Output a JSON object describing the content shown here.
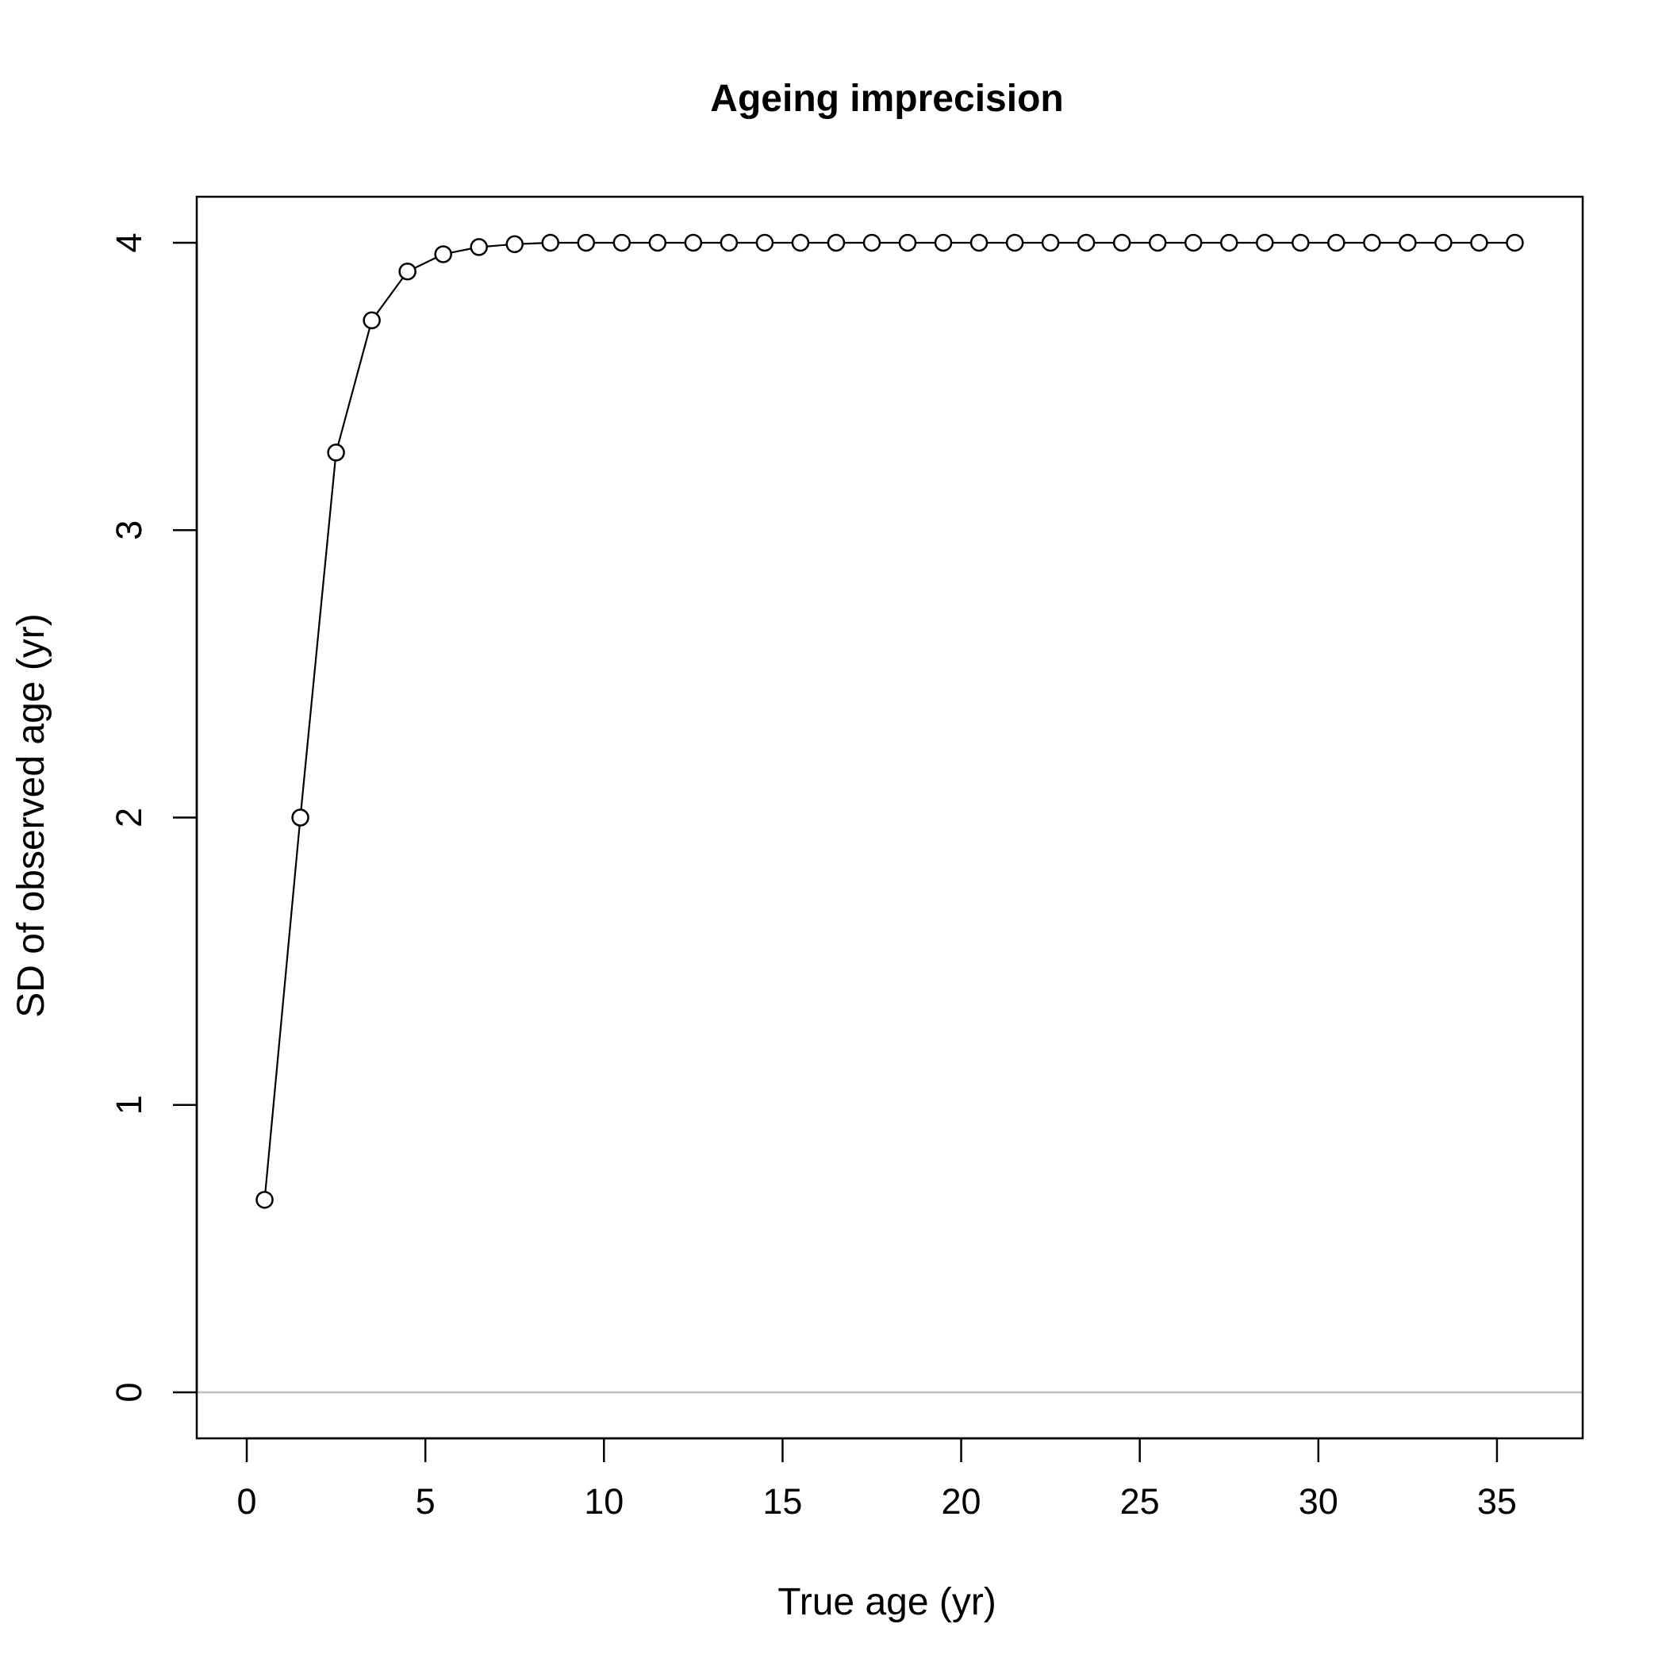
{
  "chart_data": {
    "type": "line",
    "title": "Ageing imprecision",
    "xlabel": "True age (yr)",
    "ylabel": "SD of observed age (yr)",
    "xlim": [
      -1.4,
      37.4
    ],
    "ylim": [
      -0.16,
      4.16
    ],
    "x_ticks": [
      0,
      5,
      10,
      15,
      20,
      25,
      30,
      35
    ],
    "y_ticks": [
      0,
      1,
      2,
      3,
      4
    ],
    "grid": false,
    "reference_line": {
      "y": 0,
      "color": "#bebebe"
    },
    "series": [
      {
        "marker": "open-circle",
        "line": "solid",
        "color": "#000000",
        "x": [
          0.5,
          1.5,
          2.5,
          3.5,
          4.5,
          5.5,
          6.5,
          7.5,
          8.5,
          9.5,
          10.5,
          11.5,
          12.5,
          13.5,
          14.5,
          15.5,
          16.5,
          17.5,
          18.5,
          19.5,
          20.5,
          21.5,
          22.5,
          23.5,
          24.5,
          25.5,
          26.5,
          27.5,
          28.5,
          29.5,
          30.5,
          31.5,
          32.5,
          33.5,
          34.5,
          35.5
        ],
        "values": [
          0.67,
          2.0,
          3.27,
          3.73,
          3.9,
          3.96,
          3.985,
          3.995,
          4.0,
          4.0,
          4.0,
          4.0,
          4.0,
          4.0,
          4.0,
          4.0,
          4.0,
          4.0,
          4.0,
          4.0,
          4.0,
          4.0,
          4.0,
          4.0,
          4.0,
          4.0,
          4.0,
          4.0,
          4.0,
          4.0,
          4.0,
          4.0,
          4.0,
          4.0,
          4.0,
          4.0
        ]
      }
    ]
  }
}
